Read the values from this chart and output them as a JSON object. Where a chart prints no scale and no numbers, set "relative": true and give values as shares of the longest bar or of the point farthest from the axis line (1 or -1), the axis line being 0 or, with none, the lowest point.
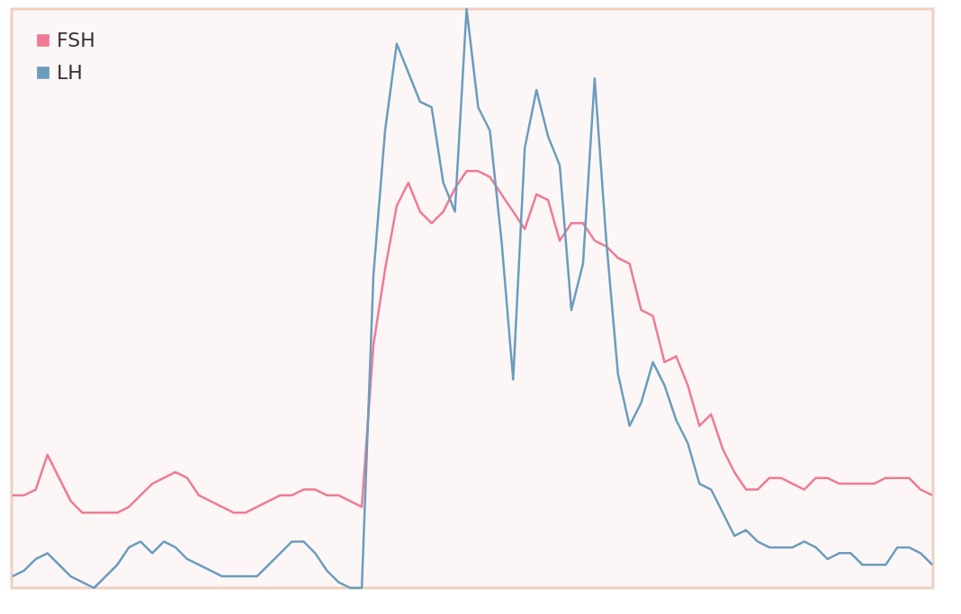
{
  "chart_data": {
    "type": "line",
    "relative": true,
    "legend": "top left",
    "grid": false,
    "categories": [
      null,
      null,
      null,
      null,
      null,
      null,
      null,
      null,
      null,
      null,
      null,
      null,
      null,
      null,
      null,
      null,
      null,
      null,
      null,
      null,
      null,
      null,
      null,
      null,
      null,
      null,
      null,
      null,
      null,
      null,
      null,
      null,
      null,
      null,
      null,
      null,
      null,
      null,
      null,
      null,
      null,
      null,
      null,
      null,
      null,
      null,
      null,
      null,
      null,
      null,
      null,
      null,
      null,
      null,
      null,
      null,
      null,
      null,
      null,
      null,
      null,
      null,
      null,
      null,
      null,
      null,
      null,
      null,
      null,
      null,
      null,
      null,
      null,
      null,
      null,
      null,
      null,
      null,
      null,
      null
    ],
    "series": [
      {
        "name": "FSH",
        "color": "#f07a93",
        "values": [
          0.16,
          0.16,
          0.17,
          0.23,
          0.19,
          0.15,
          0.13,
          0.13,
          0.13,
          0.13,
          0.14,
          0.16,
          0.18,
          0.19,
          0.2,
          0.19,
          0.16,
          0.15,
          0.14,
          0.13,
          0.13,
          0.14,
          0.15,
          0.16,
          0.16,
          0.17,
          0.17,
          0.16,
          0.16,
          0.15,
          0.14,
          0.42,
          0.55,
          0.66,
          0.7,
          0.65,
          0.63,
          0.65,
          0.69,
          0.72,
          0.72,
          0.71,
          0.68,
          0.65,
          0.62,
          0.68,
          0.67,
          0.6,
          0.63,
          0.63,
          0.6,
          0.59,
          0.57,
          0.56,
          0.48,
          0.47,
          0.39,
          0.4,
          0.35,
          0.28,
          0.3,
          0.24,
          0.2,
          0.17,
          0.17,
          0.19,
          0.19,
          0.18,
          0.17,
          0.19,
          0.19,
          0.18,
          0.18,
          0.18,
          0.18,
          0.19,
          0.19,
          0.19,
          0.17,
          0.16
        ]
      },
      {
        "name": "LH",
        "color": "#6a9dbd",
        "values": [
          0.02,
          0.03,
          0.05,
          0.06,
          0.04,
          0.02,
          0.01,
          0.0,
          0.02,
          0.04,
          0.07,
          0.08,
          0.06,
          0.08,
          0.07,
          0.05,
          0.04,
          0.03,
          0.02,
          0.02,
          0.02,
          0.02,
          0.04,
          0.06,
          0.08,
          0.08,
          0.06,
          0.03,
          0.01,
          0.0,
          0.0,
          0.54,
          0.79,
          0.94,
          0.89,
          0.84,
          0.83,
          0.7,
          0.65,
          1.0,
          0.83,
          0.79,
          0.6,
          0.36,
          0.76,
          0.86,
          0.78,
          0.73,
          0.48,
          0.56,
          0.88,
          0.6,
          0.37,
          0.28,
          0.32,
          0.39,
          0.35,
          0.29,
          0.25,
          0.18,
          0.17,
          0.13,
          0.09,
          0.1,
          0.08,
          0.07,
          0.07,
          0.07,
          0.08,
          0.07,
          0.05,
          0.06,
          0.06,
          0.04,
          0.04,
          0.04,
          0.07,
          0.07,
          0.06,
          0.04
        ]
      }
    ]
  }
}
